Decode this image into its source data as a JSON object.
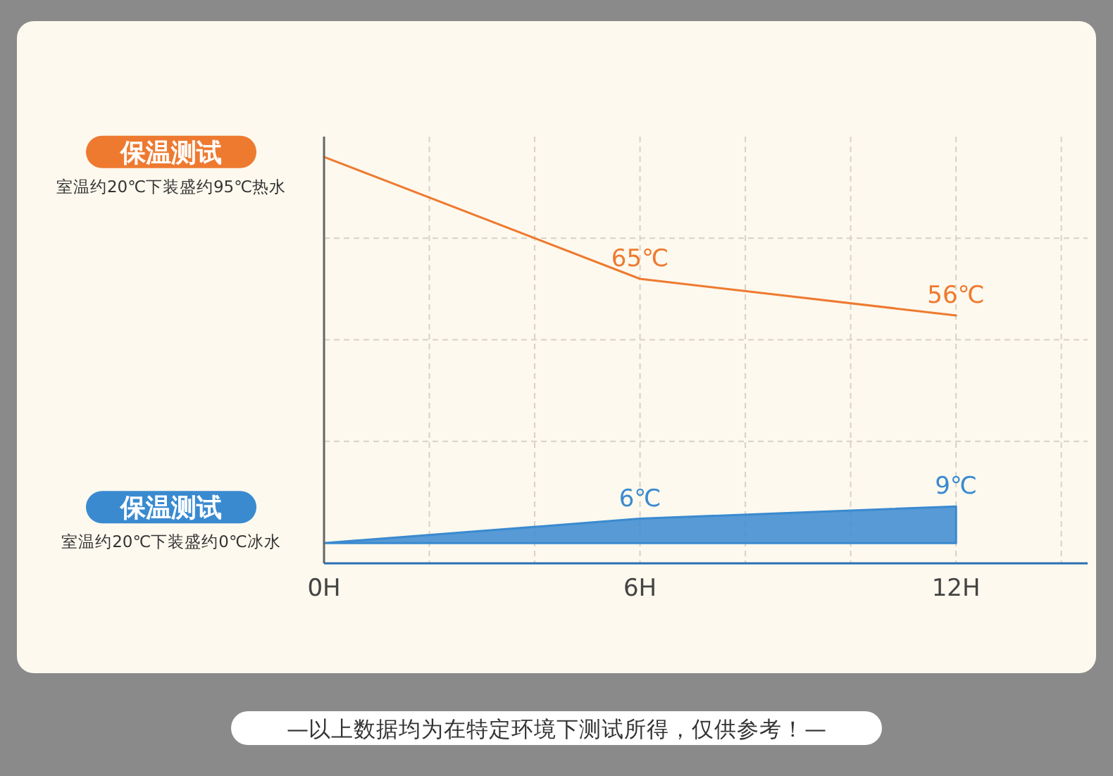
{
  "chart_data": {
    "type": "line",
    "x": [
      0,
      6,
      12
    ],
    "series": [
      {
        "name": "保温测试",
        "color": "#ee7a30",
        "values": [
          95,
          65,
          56
        ],
        "value_labels": [
          null,
          "65℃",
          "56℃"
        ]
      },
      {
        "name": "保温测试",
        "type": "area",
        "color": "#3a8ad0",
        "values": [
          0,
          6,
          9
        ],
        "value_labels": [
          null,
          "6℃",
          "9℃"
        ]
      }
    ],
    "xlim": [
      0,
      14.5
    ],
    "xticks": [
      {
        "value": 0,
        "label": "0H"
      },
      {
        "value": 2,
        "label": null
      },
      {
        "value": 4,
        "label": null
      },
      {
        "value": 6,
        "label": "6H"
      },
      {
        "value": 8,
        "label": null
      },
      {
        "value": 10,
        "label": null
      },
      {
        "value": 12,
        "label": "12H"
      },
      {
        "value": 14,
        "label": null
      }
    ],
    "ylim": [
      -5,
      100
    ],
    "yticks": [
      {
        "value": 25,
        "label": null
      },
      {
        "value": 50,
        "label": null
      },
      {
        "value": 75,
        "label": null
      }
    ],
    "tick_labels": "x",
    "grid": true,
    "legend": false,
    "marker": "none",
    "line_style": "solid",
    "annotations": [
      "室温约20℃下装盛约95℃热水",
      "室温约20℃下装盛约0℃冰水",
      "—以上数据均为在特定环境下测试所得，仅供参考！—"
    ]
  }
}
